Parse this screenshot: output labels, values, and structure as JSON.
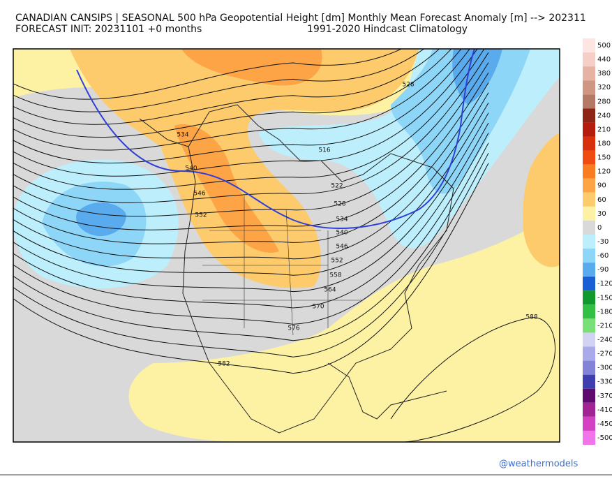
{
  "header": {
    "title": "CANADIAN CANSIPS | SEASONAL 500 hPa Geopotential Height [dm] Monthly Mean Forecast Anomaly [m] --> 202311",
    "init": "FORECAST INIT: 20231101  +0 months",
    "climatology": "1991-2020 Hindcast Climatology"
  },
  "map": {
    "contour_labels": [
      528,
      534,
      540,
      546,
      552,
      516,
      522,
      528,
      534,
      540,
      546,
      552,
      558,
      564,
      570,
      576,
      582,
      588
    ]
  },
  "colorbar": [
    {
      "value": 500,
      "color": "#fde6e2"
    },
    {
      "value": 440,
      "color": "#f5cfc6"
    },
    {
      "value": 380,
      "color": "#e6b2a4"
    },
    {
      "value": 320,
      "color": "#cf9684"
    },
    {
      "value": 280,
      "color": "#b47a66"
    },
    {
      "value": 240,
      "color": "#8e2416"
    },
    {
      "value": 210,
      "color": "#b41c0e"
    },
    {
      "value": 180,
      "color": "#d8300e"
    },
    {
      "value": 150,
      "color": "#f04c12"
    },
    {
      "value": 120,
      "color": "#f87c22"
    },
    {
      "value": 90,
      "color": "#fca446"
    },
    {
      "value": 60,
      "color": "#fdca6c"
    },
    {
      "value": 30,
      "color": "#fdf2a4"
    },
    {
      "value": 0,
      "color": "#d9d9d9"
    },
    {
      "value": -30,
      "color": "#bdeefb"
    },
    {
      "value": -60,
      "color": "#8ed6f8"
    },
    {
      "value": -90,
      "color": "#5aaaee"
    },
    {
      "value": -120,
      "color": "#1a5ed6"
    },
    {
      "value": -150,
      "color": "#109a2e"
    },
    {
      "value": -180,
      "color": "#32c044"
    },
    {
      "value": -210,
      "color": "#78e076"
    },
    {
      "value": -240,
      "color": "#d2d2f2"
    },
    {
      "value": -270,
      "color": "#aaaaea"
    },
    {
      "value": -300,
      "color": "#8282d8"
    },
    {
      "value": -330,
      "color": "#3e3eae"
    },
    {
      "value": -370,
      "color": "#5e0a6e"
    },
    {
      "value": -410,
      "color": "#a22494"
    },
    {
      "value": -450,
      "color": "#d242c2"
    },
    {
      "value": -500,
      "color": "#f274ea"
    }
  ],
  "watermark": "@weathermodels"
}
